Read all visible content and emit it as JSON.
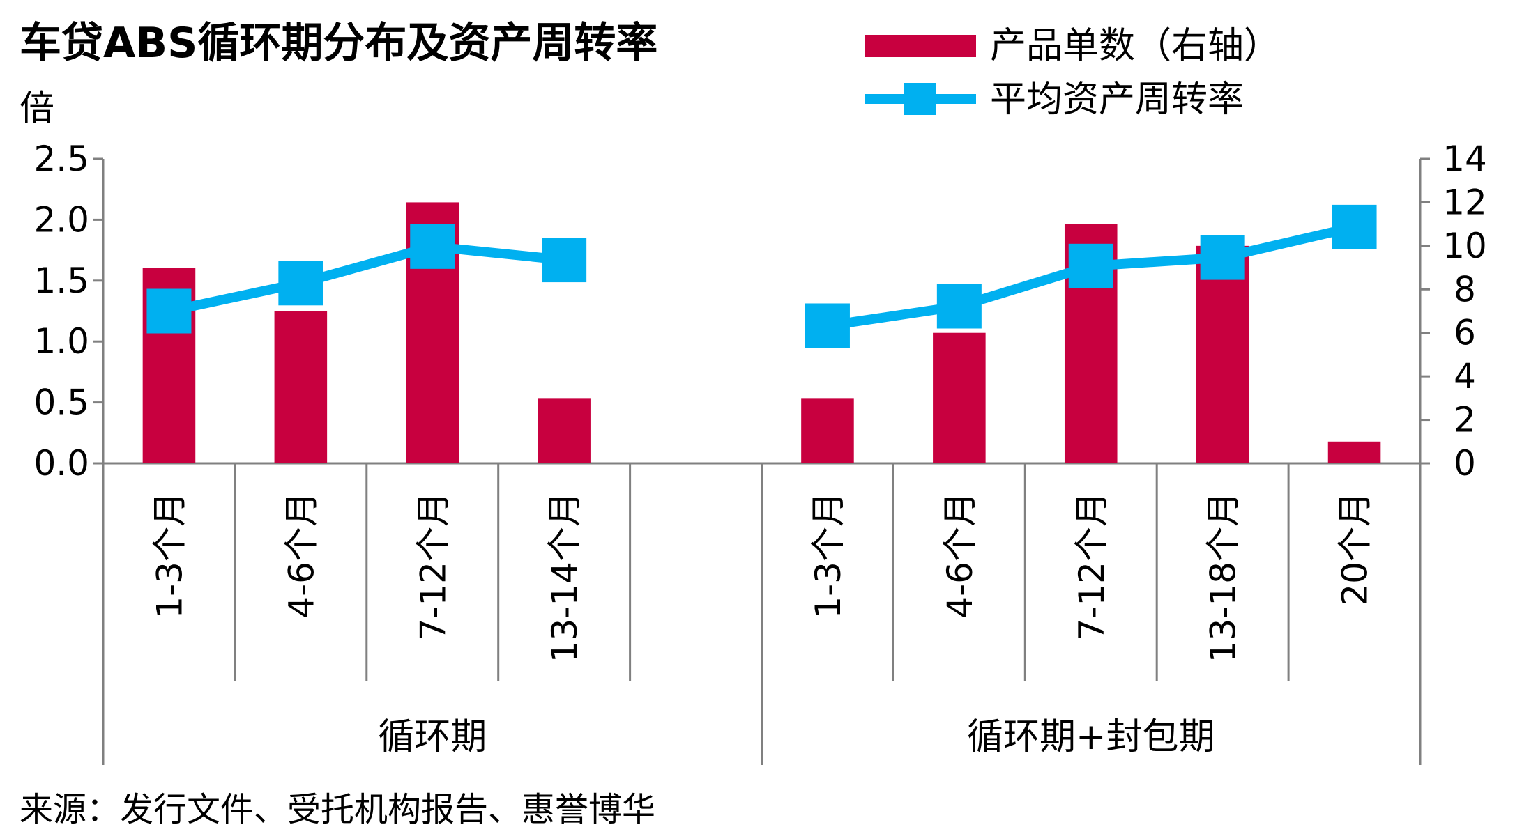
{
  "chart_data": {
    "type": "bar+line",
    "title": "车贷ABS循环期分布及资产周转率",
    "y_left_unit": "倍",
    "y_left_lim": [
      0,
      2.5
    ],
    "y_left_ticks": [
      "0.0",
      "0.5",
      "1.0",
      "1.5",
      "2.0",
      "2.5"
    ],
    "y_right_lim": [
      0,
      14
    ],
    "y_right_ticks": [
      "0",
      "2",
      "4",
      "6",
      "8",
      "10",
      "12",
      "14"
    ],
    "groups": [
      {
        "label": "循环期",
        "categories": [
          "1-3个月",
          "4-6个月",
          "7-12个月",
          "13-14个月",
          ""
        ]
      },
      {
        "label": "循环期+封包期",
        "categories": [
          "1-3个月",
          "4-6个月",
          "7-12个月",
          "13-18个月",
          "20个月"
        ]
      }
    ],
    "series": [
      {
        "name": "产品单数（右轴）",
        "type": "bar",
        "axis": "right",
        "color": "#C8003F",
        "values": [
          9,
          7,
          12,
          3,
          null,
          3,
          6,
          11,
          10,
          1
        ]
      },
      {
        "name": "平均资产周转率",
        "type": "line",
        "axis": "left",
        "color": "#00B0F0",
        "marker": "square",
        "values": [
          1.25,
          1.48,
          1.78,
          1.67,
          null,
          1.13,
          1.29,
          1.62,
          1.69,
          1.94
        ]
      }
    ],
    "legend_position": "top-right",
    "grid": false
  },
  "source": "来源：发行文件、受托机构报告、惠誉博华"
}
